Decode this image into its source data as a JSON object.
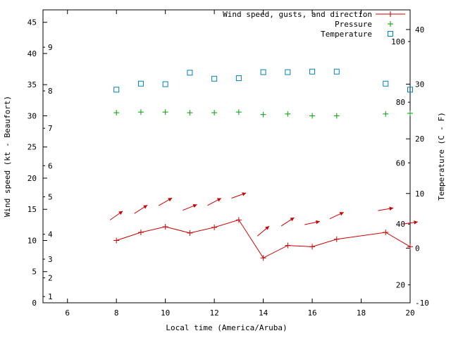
{
  "chart_data": {
    "type": "line",
    "title": "",
    "xlabel": "Local time (America/Aruba)",
    "ylabel_left": "Wind speed (kt - Beaufort)",
    "ylabel_right": "Temperature (C - F)",
    "legend_position": "top-right-inside",
    "grid": false,
    "colors": {
      "wind": "#cc0000",
      "pressure": "#00a000",
      "temperature": "#0080c0",
      "axis": "#000000"
    },
    "axes": {
      "x": {
        "min": 5,
        "max": 20,
        "ticks": [
          6,
          8,
          10,
          12,
          14,
          16,
          18,
          20
        ],
        "label": "Local time (America/Aruba)"
      },
      "left": {
        "min": 0,
        "max": 47,
        "ticks": [
          0,
          5,
          10,
          15,
          20,
          25,
          30,
          35,
          40,
          45
        ],
        "label": "Wind speed (kt - Beaufort)",
        "inner_ticks": [
          {
            "label": "1",
            "value": 1
          },
          {
            "label": "2",
            "value": 4
          },
          {
            "label": "3",
            "value": 7
          },
          {
            "label": "4",
            "value": 11
          },
          {
            "label": "5",
            "value": 17
          },
          {
            "label": "6",
            "value": 22
          },
          {
            "label": "7",
            "value": 28
          },
          {
            "label": "8",
            "value": 34
          },
          {
            "label": "9",
            "value": 41
          }
        ]
      },
      "right": {
        "min": -10,
        "max": 43.6,
        "ticks": [
          -10,
          0,
          10,
          20,
          30,
          40
        ],
        "label": "Temperature (C - F)",
        "inner_ticks": [
          {
            "label": "20",
            "value": -6.7
          },
          {
            "label": "40",
            "value": 4.4
          },
          {
            "label": "60",
            "value": 15.6
          },
          {
            "label": "80",
            "value": 26.7
          },
          {
            "label": "100",
            "value": 37.8
          }
        ]
      }
    },
    "x": [
      8,
      9,
      10,
      11,
      12,
      13,
      14,
      15,
      16,
      17,
      19,
      20
    ],
    "series": [
      {
        "name": "Wind speed",
        "axis": "left",
        "style": "line-plus",
        "color": "#cc0000",
        "values": [
          10.0,
          11.3,
          12.2,
          11.2,
          12.1,
          13.3,
          7.2,
          9.2,
          9.0,
          10.2,
          11.3,
          9.0
        ]
      },
      {
        "name": "Wind gusts and direction",
        "axis": "left",
        "style": "arrow",
        "color": "#cc0000",
        "values": [
          14.0,
          15.0,
          16.2,
          15.3,
          16.2,
          17.2,
          11.5,
          13.0,
          12.8,
          14.0,
          15.0,
          12.8
        ],
        "angles": [
          35,
          33,
          30,
          22,
          28,
          20,
          40,
          33,
          12,
          25,
          10,
          8
        ]
      },
      {
        "name": "Pressure",
        "axis": "left",
        "style": "plus",
        "color": "#00a000",
        "values": [
          30.5,
          30.6,
          30.6,
          30.5,
          30.5,
          30.6,
          30.2,
          30.3,
          30.0,
          30.0,
          30.3,
          30.4
        ]
      },
      {
        "name": "Temperature",
        "axis": "right",
        "style": "square",
        "color": "#0080c0",
        "values": [
          29.0,
          30.1,
          30.0,
          32.1,
          31.0,
          31.1,
          32.2,
          32.2,
          32.3,
          32.3,
          30.1,
          29.0
        ]
      }
    ],
    "legend": [
      {
        "label": "Wind speed, gusts, and direction",
        "color": "#cc0000",
        "symbol": "line-plus"
      },
      {
        "label": "Pressure",
        "color": "#00a000",
        "symbol": "plus"
      },
      {
        "label": "Temperature",
        "color": "#0080c0",
        "symbol": "square"
      }
    ]
  }
}
